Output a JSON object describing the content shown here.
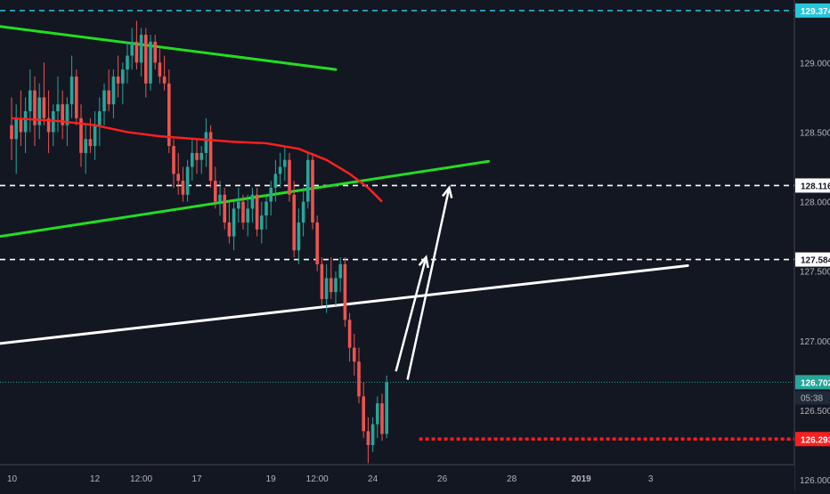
{
  "chart_data": {
    "type": "candlestick",
    "title": "",
    "xlabel": "",
    "ylabel": "",
    "ylim": [
      125.93,
      129.45
    ],
    "grid": false,
    "legend": "none",
    "x_ticks": [
      {
        "label": "10",
        "index": 0,
        "bold": false
      },
      {
        "label": "12",
        "index": 18,
        "bold": false
      },
      {
        "label": "12:00",
        "index": 28,
        "bold": false
      },
      {
        "label": "17",
        "index": 40,
        "bold": false
      },
      {
        "label": "19",
        "index": 56,
        "bold": false
      },
      {
        "label": "12:00",
        "index": 66,
        "bold": false
      },
      {
        "label": "24",
        "index": 78,
        "bold": false
      },
      {
        "label": "26",
        "index": 93,
        "bold": false
      },
      {
        "label": "28",
        "index": 108,
        "bold": false
      },
      {
        "label": "2019",
        "index": 123,
        "bold": true
      },
      {
        "label": "3",
        "index": 138,
        "bold": false
      }
    ],
    "y_ticks": [
      126.0,
      126.5,
      127.0,
      127.5,
      128.0,
      128.5,
      129.0
    ],
    "price_tags": [
      {
        "label": "129.374",
        "value": 129.374,
        "color": "#26c6da"
      },
      {
        "label": "128.116",
        "value": 128.116,
        "color": "#ffffff"
      },
      {
        "label": "127.584",
        "value": 127.584,
        "color": "#ffffff"
      },
      {
        "label": "126.702",
        "value": 126.702,
        "color": "#26a69a"
      },
      {
        "label": "126.293",
        "value": 126.293,
        "color": "#ff1e1e"
      }
    ],
    "countdown": "05:38",
    "levels": [
      {
        "name": "",
        "value": 129.374,
        "color": "#26c6da",
        "style": "dashed",
        "from_index": 0
      },
      {
        "name": "",
        "value": 128.116,
        "color": "#ffffff",
        "style": "dashed",
        "from_index": 0
      },
      {
        "name": "",
        "value": 127.584,
        "color": "#ffffff",
        "style": "dashed",
        "from_index": 0
      },
      {
        "name": "",
        "value": 126.702,
        "color": "#26a69a",
        "style": "dotted",
        "from_index": 0
      },
      {
        "name": "",
        "value": 126.293,
        "color": "#ff1e1e",
        "style": "dotted-thick",
        "from_index": 88
      }
    ],
    "trendlines": [
      {
        "color": "#22dd22",
        "points": [
          [
            0,
            129.26
          ],
          [
            70,
            128.95
          ]
        ]
      },
      {
        "color": "#22dd22",
        "points": [
          [
            0,
            127.75
          ],
          [
            103,
            128.29
          ]
        ]
      },
      {
        "color": "#ffffff",
        "points": [
          [
            0,
            126.98
          ],
          [
            146,
            127.54
          ]
        ]
      }
    ],
    "moving_average": {
      "color": "#ff2020",
      "points": [
        [
          0,
          128.6
        ],
        [
          10,
          128.58
        ],
        [
          18,
          128.55
        ],
        [
          25,
          128.5
        ],
        [
          32,
          128.47
        ],
        [
          40,
          128.45
        ],
        [
          48,
          128.43
        ],
        [
          55,
          128.42
        ],
        [
          62,
          128.38
        ],
        [
          68,
          128.3
        ],
        [
          73,
          128.2
        ],
        [
          77,
          128.1
        ],
        [
          80,
          128.0
        ]
      ]
    },
    "arrows": [
      {
        "color": "#ffffff",
        "from": [
          83,
          126.78
        ],
        "to": [
          89.5,
          127.6
        ]
      },
      {
        "color": "#ffffff",
        "from": [
          85.5,
          126.72
        ],
        "to": [
          94.5,
          128.1
        ]
      }
    ],
    "candles": [
      [
        0,
        128.55,
        128.75,
        128.3,
        128.45
      ],
      [
        1,
        128.45,
        128.7,
        128.2,
        128.6
      ],
      [
        2,
        128.6,
        128.8,
        128.4,
        128.5
      ],
      [
        3,
        128.5,
        128.75,
        128.35,
        128.65
      ],
      [
        4,
        128.65,
        128.95,
        128.5,
        128.8
      ],
      [
        5,
        128.8,
        128.9,
        128.4,
        128.55
      ],
      [
        6,
        128.55,
        128.85,
        128.45,
        128.75
      ],
      [
        7,
        128.75,
        129.0,
        128.55,
        128.6
      ],
      [
        8,
        128.6,
        128.8,
        128.35,
        128.5
      ],
      [
        9,
        128.5,
        128.7,
        128.4,
        128.65
      ],
      [
        10,
        128.65,
        128.9,
        128.5,
        128.7
      ],
      [
        11,
        128.7,
        128.8,
        128.45,
        128.55
      ],
      [
        12,
        128.55,
        128.75,
        128.4,
        128.7
      ],
      [
        13,
        128.7,
        129.05,
        128.6,
        128.9
      ],
      [
        14,
        128.9,
        128.95,
        128.55,
        128.6
      ],
      [
        15,
        128.6,
        128.7,
        128.25,
        128.35
      ],
      [
        16,
        128.35,
        128.55,
        128.2,
        128.45
      ],
      [
        17,
        128.45,
        128.6,
        128.35,
        128.4
      ],
      [
        18,
        128.4,
        128.65,
        128.3,
        128.55
      ],
      [
        19,
        128.55,
        128.75,
        128.4,
        128.65
      ],
      [
        20,
        128.65,
        128.85,
        128.55,
        128.8
      ],
      [
        21,
        128.8,
        128.95,
        128.65,
        128.7
      ],
      [
        22,
        128.7,
        128.95,
        128.6,
        128.9
      ],
      [
        23,
        128.9,
        129.05,
        128.75,
        128.85
      ],
      [
        24,
        128.85,
        129.0,
        128.7,
        128.95
      ],
      [
        25,
        128.95,
        129.15,
        128.85,
        129.05
      ],
      [
        26,
        129.05,
        129.25,
        128.95,
        129.15
      ],
      [
        27,
        129.15,
        129.3,
        128.95,
        129.0
      ],
      [
        28,
        129.0,
        129.25,
        128.9,
        129.2
      ],
      [
        29,
        129.2,
        129.25,
        128.75,
        128.85
      ],
      [
        30,
        128.85,
        129.2,
        128.8,
        129.15
      ],
      [
        31,
        129.15,
        129.2,
        128.95,
        129.0
      ],
      [
        32,
        129.0,
        129.1,
        128.85,
        128.9
      ],
      [
        33,
        128.9,
        129.05,
        128.8,
        128.85
      ],
      [
        34,
        128.85,
        128.95,
        128.35,
        128.4
      ],
      [
        35,
        128.4,
        128.45,
        128.1,
        128.2
      ],
      [
        36,
        128.2,
        128.35,
        128.05,
        128.15
      ],
      [
        37,
        128.15,
        128.25,
        128.0,
        128.05
      ],
      [
        38,
        128.05,
        128.3,
        128.0,
        128.25
      ],
      [
        39,
        128.25,
        128.45,
        128.15,
        128.35
      ],
      [
        40,
        128.35,
        128.45,
        128.2,
        128.3
      ],
      [
        41,
        128.3,
        128.4,
        128.2,
        128.35
      ],
      [
        42,
        128.35,
        128.6,
        128.25,
        128.5
      ],
      [
        43,
        128.5,
        128.55,
        128.1,
        128.15
      ],
      [
        44,
        128.15,
        128.25,
        127.95,
        128.0
      ],
      [
        45,
        128.0,
        128.15,
        127.9,
        128.05
      ],
      [
        46,
        128.05,
        128.1,
        127.8,
        127.85
      ],
      [
        47,
        127.85,
        128.0,
        127.7,
        127.75
      ],
      [
        48,
        127.75,
        128.0,
        127.65,
        127.95
      ],
      [
        49,
        127.95,
        128.1,
        127.85,
        128.0
      ],
      [
        50,
        128.0,
        128.05,
        127.8,
        127.85
      ],
      [
        51,
        127.85,
        128.05,
        127.75,
        127.95
      ],
      [
        52,
        127.95,
        128.1,
        127.85,
        128.05
      ],
      [
        53,
        128.05,
        128.1,
        127.75,
        127.8
      ],
      [
        54,
        127.8,
        128.0,
        127.7,
        127.9
      ],
      [
        55,
        127.9,
        128.05,
        127.8,
        128.0
      ],
      [
        56,
        128.0,
        128.15,
        127.9,
        128.1
      ],
      [
        57,
        128.1,
        128.3,
        128.0,
        128.2
      ],
      [
        58,
        128.2,
        128.35,
        128.1,
        128.25
      ],
      [
        59,
        128.25,
        128.4,
        128.15,
        128.3
      ],
      [
        60,
        128.3,
        128.35,
        128.0,
        128.05
      ],
      [
        61,
        128.05,
        128.15,
        127.6,
        127.65
      ],
      [
        62,
        127.65,
        127.95,
        127.55,
        127.85
      ],
      [
        63,
        127.85,
        128.1,
        127.75,
        128.0
      ],
      [
        64,
        128.0,
        128.35,
        127.95,
        128.3
      ],
      [
        65,
        128.3,
        128.35,
        127.8,
        127.85
      ],
      [
        66,
        127.85,
        127.9,
        127.5,
        127.55
      ],
      [
        67,
        127.55,
        127.6,
        127.25,
        127.3
      ],
      [
        68,
        127.3,
        127.55,
        127.2,
        127.45
      ],
      [
        69,
        127.45,
        127.6,
        127.3,
        127.35
      ],
      [
        70,
        127.35,
        127.5,
        127.25,
        127.45
      ],
      [
        71,
        127.45,
        127.6,
        127.35,
        127.55
      ],
      [
        72,
        127.55,
        127.6,
        127.1,
        127.15
      ],
      [
        73,
        127.15,
        127.2,
        126.85,
        126.95
      ],
      [
        74,
        126.95,
        127.05,
        126.75,
        126.85
      ],
      [
        75,
        126.85,
        126.95,
        126.55,
        126.6
      ],
      [
        76,
        126.6,
        126.7,
        126.3,
        126.35
      ],
      [
        77,
        126.35,
        126.45,
        126.12,
        126.25
      ],
      [
        78,
        126.25,
        126.45,
        126.2,
        126.4
      ],
      [
        79,
        126.4,
        126.6,
        126.3,
        126.55
      ],
      [
        80,
        126.55,
        126.62,
        126.28,
        126.33
      ],
      [
        81,
        126.33,
        126.75,
        126.3,
        126.7
      ]
    ]
  }
}
